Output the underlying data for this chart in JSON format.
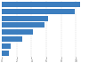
{
  "values": [
    10500,
    9800,
    6200,
    5800,
    4200,
    2800,
    1200,
    900
  ],
  "bar_color": "#3c7ebf",
  "background_color": "#ffffff",
  "grid_color": "#cccccc",
  "xlim": [
    0,
    11500
  ],
  "figsize": [
    1.0,
    0.71
  ],
  "dpi": 100,
  "bar_height": 0.75
}
